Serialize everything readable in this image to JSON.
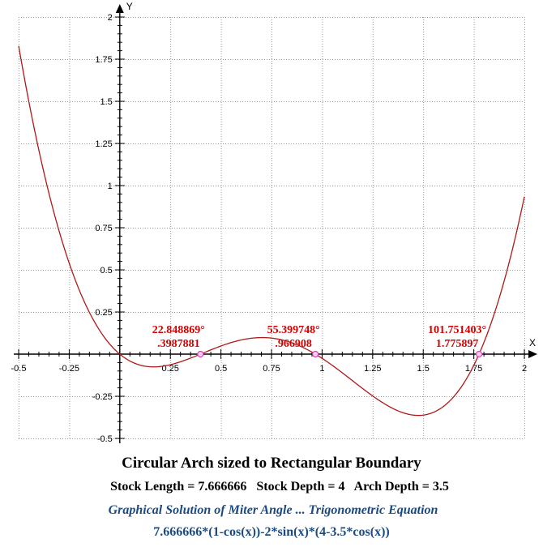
{
  "chart_data": {
    "type": "line",
    "title": "Circular Arch sized to Rectangular Boundary",
    "xlabel": "X",
    "ylabel": "Y",
    "xlim": [
      -0.5,
      2
    ],
    "ylim": [
      -0.5,
      2
    ],
    "grid": true,
    "x_ticks": [
      -0.5,
      -0.25,
      0.25,
      0.5,
      0.75,
      1,
      1.25,
      1.5,
      1.75,
      2
    ],
    "x_tick_labels": [
      "-0.5",
      "-0.25",
      "0.25",
      "0.5",
      "0.75",
      "1",
      "1.25",
      "1.5",
      "1.75",
      "2"
    ],
    "y_ticks": [
      2,
      1.75,
      1.5,
      1.25,
      1,
      0.75,
      0.5,
      0.25,
      -0.25,
      -0.5
    ],
    "y_tick_labels": [
      "2",
      "1.75",
      "1.5",
      "1.25",
      "1",
      "0.75",
      "0.5",
      "0.25",
      "-0.25",
      "-0.5"
    ],
    "series": [
      {
        "name": "7.666666*(1-cos(x))-2*sin(x)*(4-3.5*cos(x))",
        "color": "#b01818",
        "function": {
          "L": 7.666666,
          "D": 4,
          "A": 3.5
        },
        "x": [
          -0.5,
          -0.4,
          -0.3,
          -0.2,
          -0.1,
          0,
          0.1,
          0.2,
          0.3,
          0.3987881,
          0.5,
          0.6,
          0.7,
          0.8,
          0.9,
          0.966908,
          1.1,
          1.2,
          1.3,
          1.4,
          1.5,
          1.6,
          1.7,
          1.775897,
          1.9,
          2
        ],
        "y": [
          1.83,
          1.23,
          0.74,
          0.36,
          0.11,
          0,
          -0.05,
          -0.06,
          -0.04,
          0,
          0.06,
          0.09,
          0.1,
          0.09,
          0.05,
          0,
          -0.12,
          -0.22,
          -0.31,
          -0.36,
          -0.37,
          -0.31,
          -0.16,
          0,
          0.38,
          0.93
        ]
      }
    ],
    "roots": [
      {
        "x": 0.3987881,
        "degrees_label": "22.848869°",
        "radians_label": ".3987881"
      },
      {
        "x": 0.966908,
        "degrees_label": "55.399748°",
        "radians_label": ".966908"
      },
      {
        "x": 1.775897,
        "degrees_label": "101.751403°",
        "radians_label": "1.775897"
      }
    ],
    "marker_color": "#e040c0"
  },
  "captions": {
    "title": "Circular Arch sized to Rectangular Boundary",
    "params": "Stock Length = 7.666666   Stock Depth = 4   Arch Depth = 3.5",
    "subtitle": "Graphical Solution of Miter Angle ... Trigonometric Equation",
    "equation": "7.666666*(1-cos(x))-2*sin(x)*(4-3.5*cos(x))"
  }
}
